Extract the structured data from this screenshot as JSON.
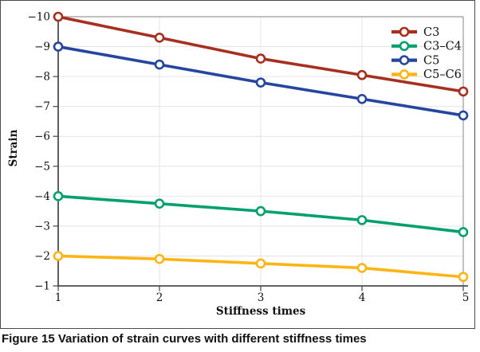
{
  "figure": {
    "caption": {
      "label": "Figure 15",
      "text": "Variation of strain curves with different stiffness times"
    }
  },
  "chart_data": {
    "type": "line",
    "title": "",
    "xlabel": "Stiffness times",
    "ylabel": "Strain",
    "x": [
      1,
      2,
      3,
      4,
      5
    ],
    "xtick_labels": [
      "1",
      "2",
      "3",
      "4",
      "5"
    ],
    "ytick_values": [
      -10,
      -9,
      -8,
      -7,
      -6,
      -5,
      -4,
      -3,
      -2,
      -1
    ],
    "ytick_labels": [
      "−10",
      "−9",
      "−8",
      "−7",
      "−6",
      "−5",
      "−4",
      "−3",
      "−2",
      "−1"
    ],
    "xlim": [
      1,
      5
    ],
    "ylim_top": -10,
    "ylim_bottom": -1,
    "y_axis_inverted": true,
    "grid": true,
    "marker": "open-circle",
    "legend_position": "top-right-inside",
    "series": [
      {
        "name": "C3",
        "color": "#a72f1f",
        "values": [
          -10.0,
          -9.3,
          -8.6,
          -8.05,
          -7.5
        ]
      },
      {
        "name": "C3–C4",
        "color": "#00a06e",
        "values": [
          -4.0,
          -3.75,
          -3.5,
          -3.2,
          -2.8
        ]
      },
      {
        "name": "C5",
        "color": "#26469e",
        "values": [
          -9.0,
          -8.4,
          -7.8,
          -7.25,
          -6.7
        ]
      },
      {
        "name": "C5–C6",
        "color": "#fcb515",
        "values": [
          -2.0,
          -1.9,
          -1.75,
          -1.6,
          -1.3
        ]
      }
    ],
    "style_colors": {
      "gridline": "#e4e4e4",
      "plot_border": "#9a9a9a",
      "axis": "#4d4d4d",
      "text": "#111111",
      "marker_fill": "#ffffff"
    }
  }
}
